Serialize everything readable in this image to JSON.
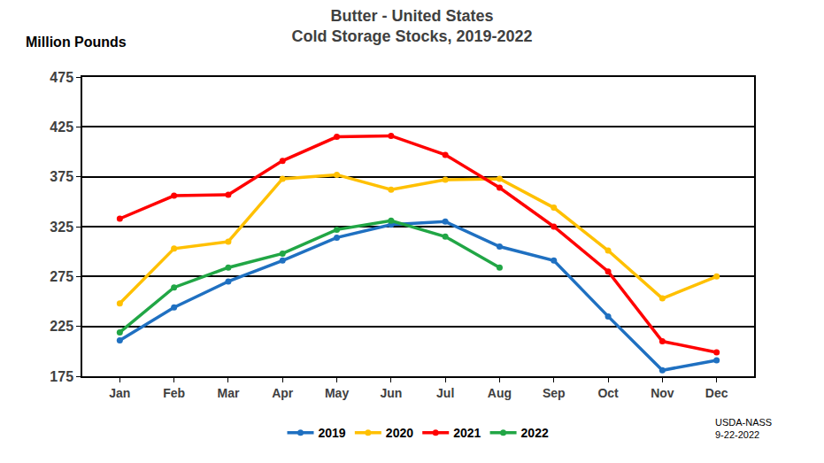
{
  "chart_data": {
    "type": "line",
    "title": "Butter - United States",
    "subtitle": "Cold Storage Stocks, 2019-2022",
    "y_label": "Million Pounds",
    "annotations": [
      "USDA-NASS",
      "9-22-2022"
    ],
    "categories": [
      "Jan",
      "Feb",
      "Mar",
      "Apr",
      "May",
      "Jun",
      "Jul",
      "Aug",
      "Sep",
      "Oct",
      "Nov",
      "Dec"
    ],
    "series": [
      {
        "name": "2019",
        "color": "#1F70C1",
        "values": [
          211,
          244,
          270,
          291,
          314,
          327,
          330,
          305,
          291,
          235,
          181,
          191
        ]
      },
      {
        "name": "2020",
        "color": "#FFC000",
        "values": [
          248,
          303,
          310,
          373,
          377,
          362,
          372,
          373,
          344,
          301,
          253,
          275
        ]
      },
      {
        "name": "2021",
        "color": "#FF0000",
        "values": [
          333,
          356,
          357,
          391,
          415,
          416,
          397,
          364,
          325,
          280,
          210,
          199
        ]
      },
      {
        "name": "2022",
        "color": "#21A645",
        "values": [
          219,
          264,
          284,
          298,
          322,
          331,
          315,
          284,
          null,
          null,
          null,
          null
        ]
      }
    ],
    "ylim": [
      175,
      475
    ],
    "yticks": [
      175,
      225,
      275,
      325,
      375,
      425,
      475
    ],
    "grid": true,
    "legend": "bottom",
    "marker": "circle"
  }
}
